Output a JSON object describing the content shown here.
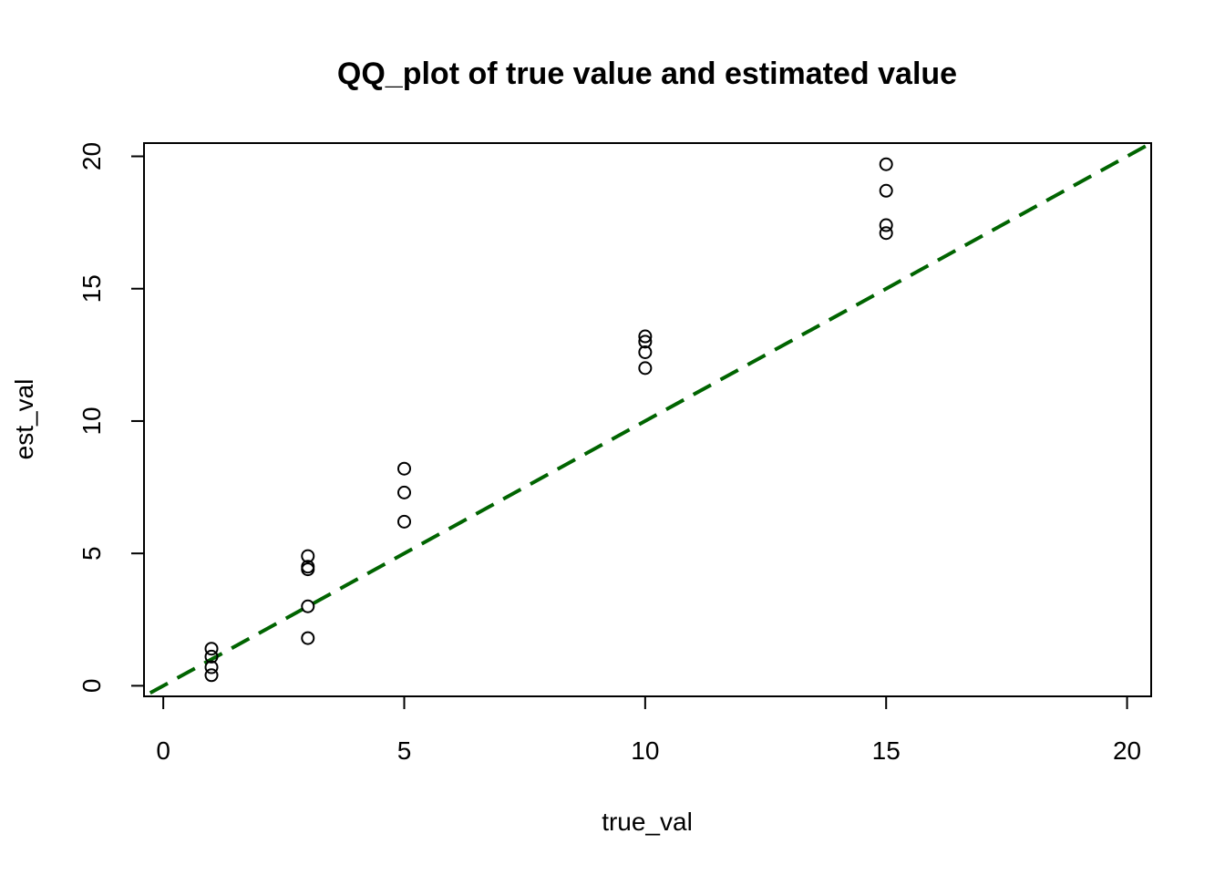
{
  "chart_data": {
    "type": "scatter",
    "title": "QQ_plot of true value and estimated value",
    "xlabel": "true_val",
    "ylabel": "est_val",
    "xlim": [
      -0.4,
      20.5
    ],
    "ylim": [
      -0.4,
      20.5
    ],
    "xticks": [
      0,
      5,
      10,
      15,
      20
    ],
    "yticks": [
      0,
      5,
      10,
      15,
      20
    ],
    "grid": false,
    "points": [
      {
        "x": 1,
        "y": 1.4
      },
      {
        "x": 1,
        "y": 1.1
      },
      {
        "x": 1,
        "y": 0.7
      },
      {
        "x": 1,
        "y": 0.4
      },
      {
        "x": 3,
        "y": 4.9
      },
      {
        "x": 3,
        "y": 4.5
      },
      {
        "x": 3,
        "y": 4.4
      },
      {
        "x": 3,
        "y": 3.0
      },
      {
        "x": 3,
        "y": 1.8
      },
      {
        "x": 5,
        "y": 8.2
      },
      {
        "x": 5,
        "y": 7.3
      },
      {
        "x": 5,
        "y": 6.2
      },
      {
        "x": 10,
        "y": 13.2
      },
      {
        "x": 10,
        "y": 13.0
      },
      {
        "x": 10,
        "y": 12.6
      },
      {
        "x": 10,
        "y": 12.0
      },
      {
        "x": 15,
        "y": 19.7
      },
      {
        "x": 15,
        "y": 18.7
      },
      {
        "x": 15,
        "y": 17.4
      },
      {
        "x": 15,
        "y": 17.1
      }
    ],
    "reference_line": {
      "type": "y=x",
      "color": "#006400",
      "style": "dashed"
    }
  }
}
